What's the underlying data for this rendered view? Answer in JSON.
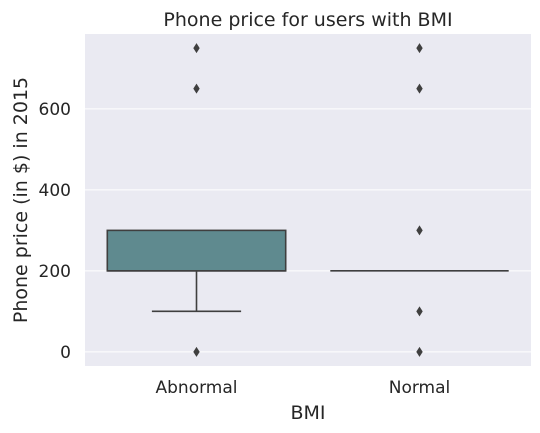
{
  "chart_data": {
    "type": "box",
    "title": "Phone price for users with BMI",
    "xlabel": "BMI",
    "ylabel": "Phone price (in $) in 2015",
    "categories": [
      "Abnormal",
      "Normal"
    ],
    "ylim": [
      -35,
      785
    ],
    "yticks": [
      0,
      200,
      400,
      600
    ],
    "grid": true,
    "boxes": [
      {
        "category": "Abnormal",
        "whisker_low": 100,
        "q1": 200,
        "median": 200,
        "q3": 300,
        "whisker_high": 300,
        "outliers": [
          0,
          650,
          750
        ]
      },
      {
        "category": "Normal",
        "whisker_low": 200,
        "q1": 200,
        "median": 200,
        "q3": 200,
        "whisker_high": 200,
        "outliers": [
          0,
          100,
          300,
          650,
          750
        ]
      }
    ],
    "colors": {
      "box_fill": "#5f8a8f",
      "line": "#3f3f3f",
      "plot_bg": "#eaeaf2",
      "grid": "#ffffff",
      "text": "#262626"
    }
  }
}
